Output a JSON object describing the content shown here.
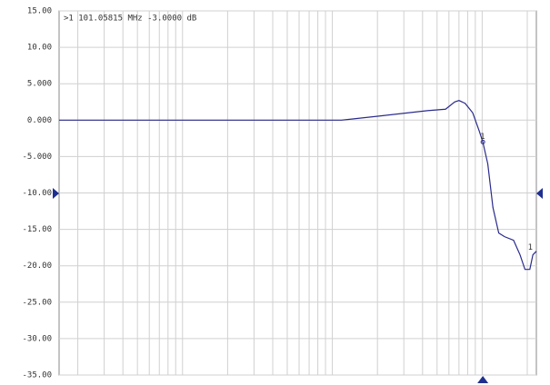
{
  "chart_data": {
    "type": "line",
    "annotation": ">1  101.05815 MHz -3.0000 dB",
    "log_x": true,
    "grid": true,
    "xlim": [
      0.15,
      230
    ],
    "xticks": [
      0.2,
      0.3,
      0.4,
      0.5,
      0.6,
      0.7,
      0.8,
      0.9,
      1,
      2,
      3,
      4,
      5,
      6,
      7,
      8,
      9,
      10,
      20,
      30,
      40,
      50,
      60,
      70,
      80,
      90,
      100,
      200
    ],
    "ylim": [
      -35,
      15
    ],
    "yticks": [
      {
        "value": 15,
        "label": "15.00"
      },
      {
        "value": 10,
        "label": "10.00"
      },
      {
        "value": 5,
        "label": "5.000"
      },
      {
        "value": 0,
        "label": "0.000"
      },
      {
        "value": -5,
        "label": "-5.000"
      },
      {
        "value": -10,
        "label": "-10.00"
      },
      {
        "value": -15,
        "label": "-15.00"
      },
      {
        "value": -20,
        "label": "-20.00"
      },
      {
        "value": -25,
        "label": "-25.00"
      },
      {
        "value": -30,
        "label": "-30.00"
      },
      {
        "value": -35,
        "label": "-35.00"
      }
    ],
    "series": [
      {
        "name": "1",
        "color": "#2a2a8c",
        "x": [
          0.15,
          11.5,
          21.4,
          43,
          57,
          65.5,
          70,
          77,
          86.5,
          95.6,
          101,
          109,
          118,
          129,
          141,
          162,
          179,
          193,
          208,
          218,
          230
        ],
        "values": [
          0,
          0,
          0.6,
          1.3,
          1.5,
          2.5,
          2.7,
          2.3,
          1,
          -1.5,
          -3,
          -6,
          -12,
          -15.5,
          -16,
          -16.5,
          -18.5,
          -20.5,
          -20.5,
          -18.5,
          -18
        ]
      }
    ],
    "markers": [
      {
        "label": "1",
        "x": 101.05815,
        "y": -3
      }
    ]
  }
}
